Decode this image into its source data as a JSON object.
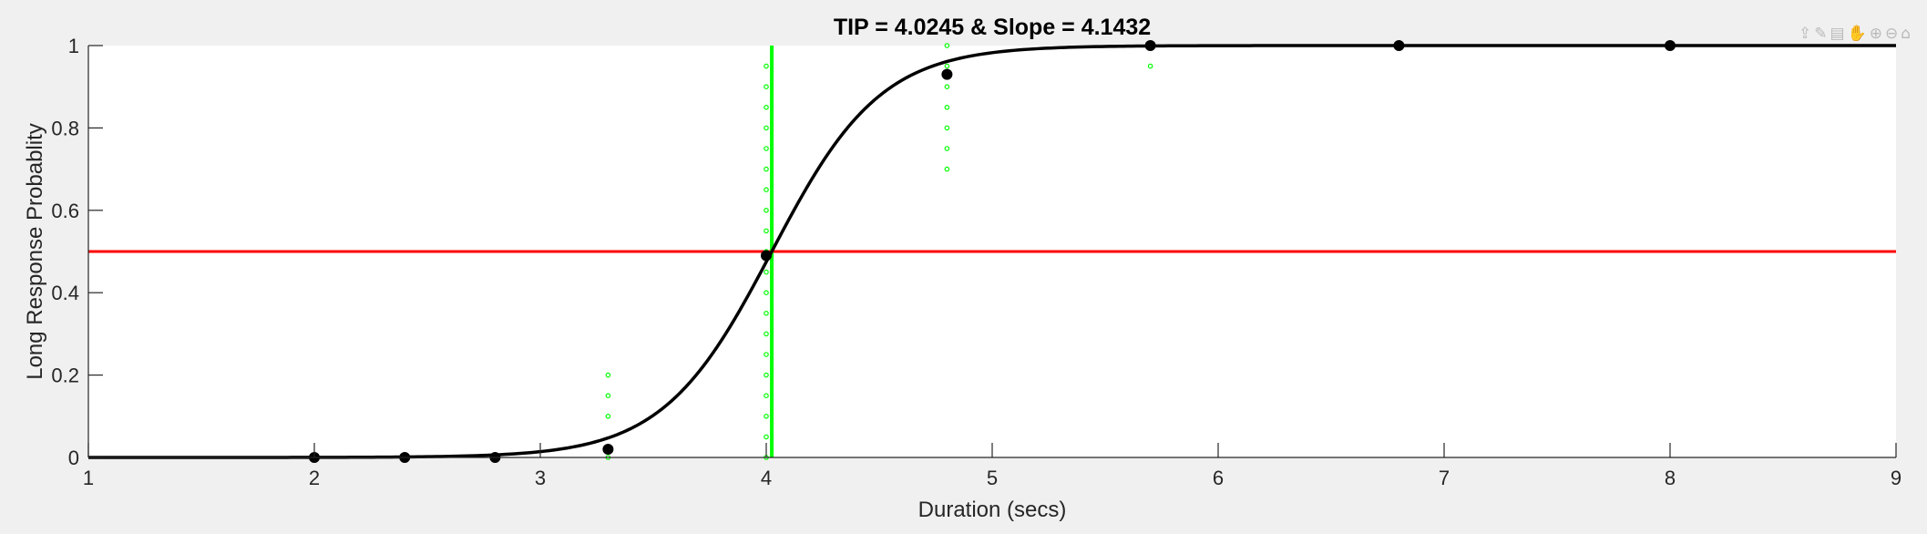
{
  "chart_data": {
    "type": "scatter",
    "title": "TIP = 4.0245 & Slope = 4.1432",
    "xlabel": "Duration (secs)",
    "ylabel": "Long Response Probablity",
    "xlim": [
      1,
      9
    ],
    "ylim": [
      0,
      1
    ],
    "xticks": [
      1,
      2,
      3,
      4,
      5,
      6,
      7,
      8,
      9
    ],
    "yticks": [
      0,
      0.2,
      0.4,
      0.6,
      0.8,
      1
    ],
    "ytick_labels": [
      "0",
      "0.2",
      "0.4",
      "0.6",
      "0.8",
      "1"
    ],
    "grid": false,
    "fit_curve": {
      "type": "logistic",
      "threshold": 4.0245,
      "slope": 4.1432,
      "color": "#000000"
    },
    "threshold_line": {
      "x": 4.0245,
      "color": "#00ff00"
    },
    "reference_line": {
      "y": 0.5,
      "color": "#ff0000"
    },
    "data_points": {
      "color": "#000000",
      "x": [
        2,
        2.4,
        2.8,
        3.3,
        4,
        4.8,
        5.7,
        6.8,
        8
      ],
      "y": [
        0,
        0,
        0,
        0.02,
        0.49,
        0.93,
        1.0,
        1.0,
        1.0
      ]
    },
    "individual_points": {
      "color": "#00ff00",
      "groups": [
        {
          "x": 3.3,
          "y": [
            0,
            0.1,
            0.15,
            0.2
          ]
        },
        {
          "x": 4,
          "y": [
            0,
            0.05,
            0.1,
            0.15,
            0.2,
            0.25,
            0.3,
            0.35,
            0.4,
            0.45,
            0.5,
            0.55,
            0.6,
            0.65,
            0.7,
            0.75,
            0.8,
            0.85,
            0.9,
            0.95
          ]
        },
        {
          "x": 4.8,
          "y": [
            0.7,
            0.75,
            0.8,
            0.85,
            0.9,
            0.95,
            1.0
          ]
        },
        {
          "x": 5.7,
          "y": [
            0.95,
            1.0
          ]
        }
      ]
    }
  },
  "toolbar": {
    "icons": [
      "export-icon",
      "brush-icon",
      "datatip-icon",
      "pan-icon",
      "zoom-in-icon",
      "zoom-out-icon",
      "home-icon"
    ],
    "glyphs": [
      "⇪",
      "✎",
      "▤",
      "✋",
      "⊕",
      "⊖",
      "⌂"
    ]
  }
}
